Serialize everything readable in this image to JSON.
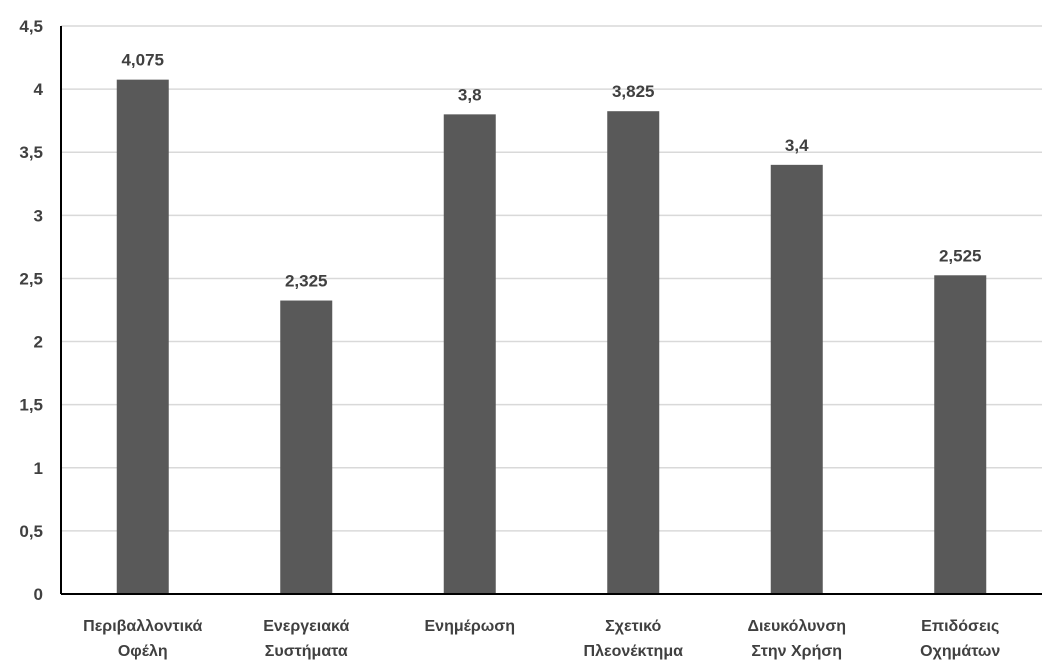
{
  "chart_data": {
    "type": "bar",
    "categories": [
      [
        "Περιβαλλοντικά",
        "Οφέλη"
      ],
      [
        "Ενεργειακά",
        "Συστήματα"
      ],
      [
        "Ενημέρωση"
      ],
      [
        "Σχετικό",
        "Πλεονέκτημα"
      ],
      [
        "Διευκόλυνση",
        "Στην Χρήση"
      ],
      [
        "Επιδόσεις",
        "Οχημάτων"
      ]
    ],
    "values": [
      4.075,
      2.325,
      3.8,
      3.825,
      3.4,
      2.525
    ],
    "data_labels": [
      "4,075",
      "2,325",
      "3,8",
      "3,825",
      "3,4",
      "2,525"
    ],
    "y_ticks": [
      0,
      0.5,
      1,
      1.5,
      2,
      2.5,
      3,
      3.5,
      4,
      4.5
    ],
    "y_tick_labels": [
      "0",
      "0,5",
      "1",
      "1,5",
      "2",
      "2,5",
      "3",
      "3,5",
      "4",
      "4,5"
    ],
    "ylim": [
      0,
      4.5
    ],
    "grid": true,
    "legend": "none",
    "title": "",
    "xlabel": "",
    "ylabel": "",
    "colors": {
      "bar": "#595959",
      "grid": "#d9d9d9",
      "axis": "#000000",
      "text": "#404040"
    }
  }
}
